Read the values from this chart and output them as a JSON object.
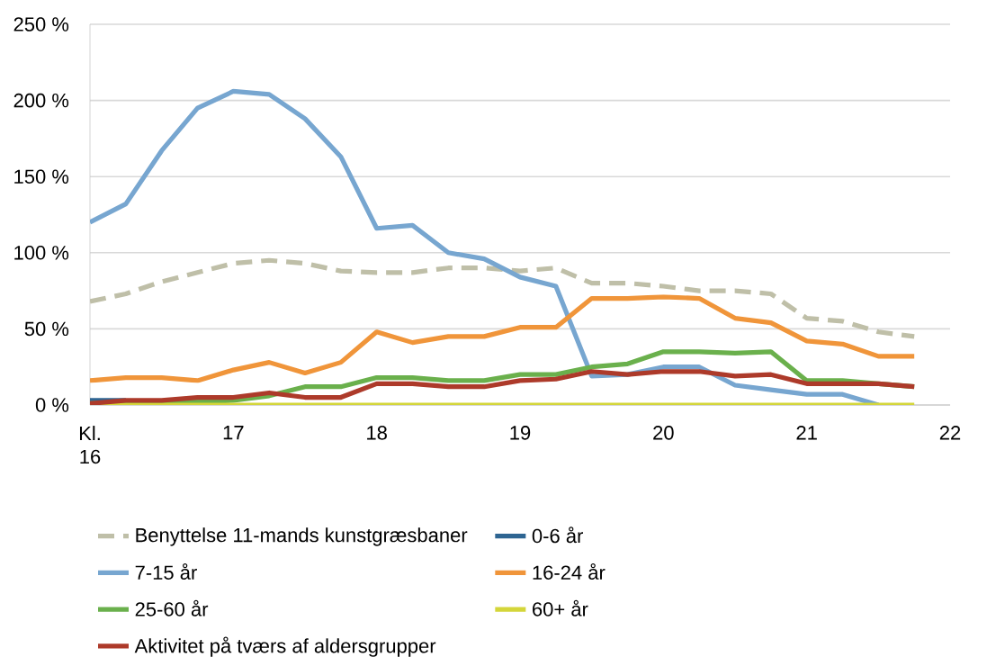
{
  "chart_data": {
    "type": "line",
    "x": [
      16,
      16.25,
      16.5,
      16.75,
      17,
      17.25,
      17.5,
      17.75,
      18,
      18.25,
      18.5,
      18.75,
      19,
      19.25,
      19.5,
      19.75,
      20,
      20.25,
      20.5,
      20.75,
      21,
      21.25,
      21.5,
      21.75
    ],
    "xlim": [
      16,
      22
    ],
    "xticks": [
      {
        "value": 16,
        "label": "Kl. 16"
      },
      17,
      18,
      19,
      20,
      21,
      22
    ],
    "ylim": [
      0,
      250
    ],
    "yticks": [
      {
        "value": 0,
        "label": "0 %"
      },
      {
        "value": 50,
        "label": "50 %"
      },
      {
        "value": 100,
        "label": "100 %"
      },
      {
        "value": 150,
        "label": "150 %"
      },
      {
        "value": 200,
        "label": "200 %"
      },
      {
        "value": 250,
        "label": "250 %"
      }
    ],
    "grid": "y",
    "legend": "bottom",
    "marker": "none",
    "series": [
      {
        "name": "Benyttelse 11-mands kunstgræsbaner",
        "color": "#bfbfa8",
        "line_style": "dashed",
        "values": [
          68,
          73,
          81,
          87,
          93,
          95,
          93,
          88,
          87,
          87,
          90,
          90,
          88,
          90,
          80,
          80,
          78,
          75,
          75,
          73,
          57,
          55,
          48,
          45
        ]
      },
      {
        "name": "0-6 år",
        "color": "#2e6592",
        "values": [
          3,
          3,
          null,
          null,
          null,
          null,
          null,
          null,
          null,
          null,
          null,
          null,
          null,
          null,
          null,
          null,
          null,
          null,
          null,
          null,
          null,
          null,
          null,
          null
        ]
      },
      {
        "name": "7-15 år",
        "color": "#77a6d0",
        "values": [
          120,
          132,
          167,
          195,
          206,
          204,
          188,
          163,
          116,
          118,
          100,
          96,
          84,
          78,
          19,
          20,
          25,
          25,
          13,
          10,
          7,
          7,
          0,
          null
        ]
      },
      {
        "name": "16-24 år",
        "color": "#f0953a",
        "values": [
          16,
          18,
          18,
          16,
          23,
          28,
          21,
          28,
          48,
          41,
          45,
          45,
          51,
          51,
          70,
          70,
          71,
          70,
          57,
          54,
          42,
          40,
          32,
          32
        ]
      },
      {
        "name": "25-60 år",
        "color": "#6ab04c",
        "values": [
          1,
          2,
          2,
          2,
          3,
          6,
          12,
          12,
          18,
          18,
          16,
          16,
          20,
          20,
          25,
          27,
          35,
          35,
          34,
          35,
          16,
          16,
          14,
          12
        ]
      },
      {
        "name": "60+ år",
        "color": "#d4d63a",
        "values": [
          0,
          0,
          0,
          0,
          0,
          0,
          0,
          0,
          0,
          0,
          0,
          0,
          0,
          0,
          0,
          0,
          0,
          0,
          0,
          0,
          0,
          0,
          0,
          0
        ]
      },
      {
        "name": "Aktivitet på tværs af aldersgrupper",
        "color": "#ad3a2a",
        "values": [
          1,
          3,
          3,
          5,
          5,
          8,
          5,
          5,
          14,
          14,
          12,
          12,
          16,
          17,
          22,
          20,
          22,
          22,
          19,
          20,
          14,
          14,
          14,
          12
        ]
      }
    ]
  }
}
